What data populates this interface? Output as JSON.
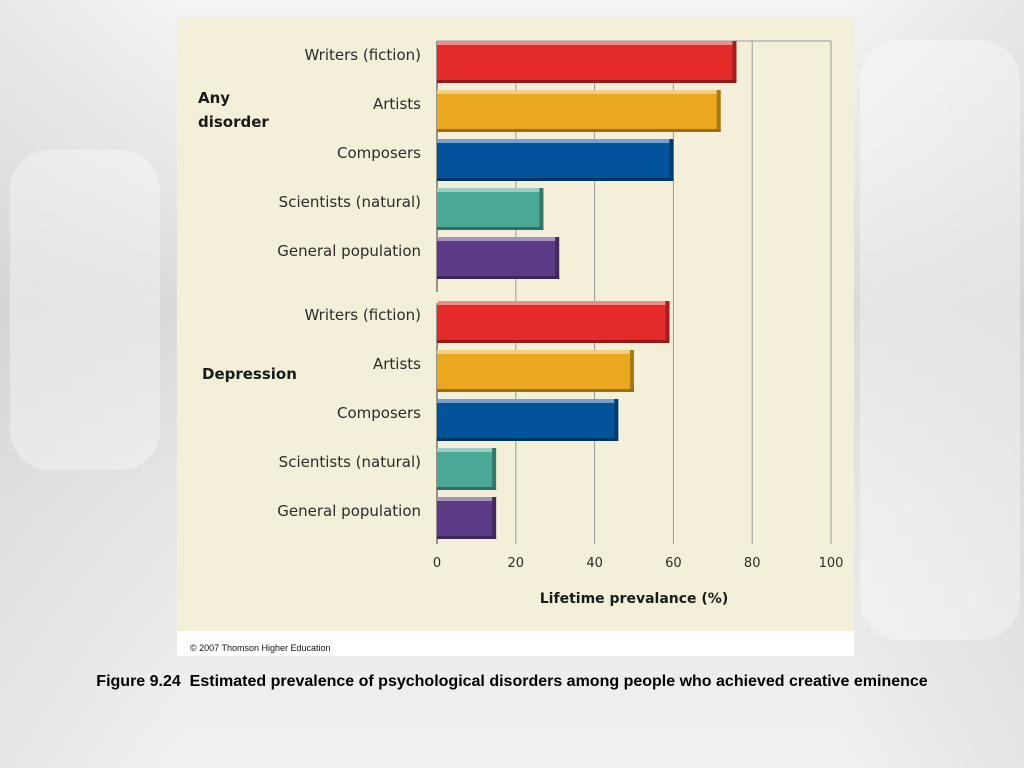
{
  "colors": {
    "background": "#f3efd8",
    "writers": "#e52a2a",
    "artists": "#e9a820",
    "composers": "#03529c",
    "scientists": "#4aa896",
    "general": "#5c3a86"
  },
  "chart_data": {
    "type": "bar",
    "orientation": "horizontal",
    "xlabel": "Lifetime prevalance (%)",
    "xlim": [
      0,
      100
    ],
    "xticks": [
      "0",
      "20",
      "40",
      "60",
      "80",
      "100"
    ],
    "grid": true,
    "groups": [
      {
        "name": "Any\ndisorder",
        "name_lines": [
          "Any",
          "disorder"
        ],
        "categories": [
          "Writers (fiction)",
          "Artists",
          "Composers",
          "Scientists (natural)",
          "General population"
        ],
        "values": [
          76,
          72,
          60,
          27,
          31
        ],
        "colors": [
          "#e52a2a",
          "#e9a820",
          "#03529c",
          "#4aa896",
          "#5c3a86"
        ]
      },
      {
        "name": "Depression",
        "name_lines": [
          "Depression"
        ],
        "categories": [
          "Writers (fiction)",
          "Artists",
          "Composers",
          "Scientists (natural)",
          "General population"
        ],
        "values": [
          59,
          50,
          46,
          15,
          15
        ],
        "colors": [
          "#e52a2a",
          "#e9a820",
          "#03529c",
          "#4aa896",
          "#5c3a86"
        ]
      }
    ]
  },
  "copyright": "© 2007 Thomson Higher Education",
  "caption": "Figure 9.24  Estimated prevalence of psychological disorders among people who achieved creative eminence"
}
